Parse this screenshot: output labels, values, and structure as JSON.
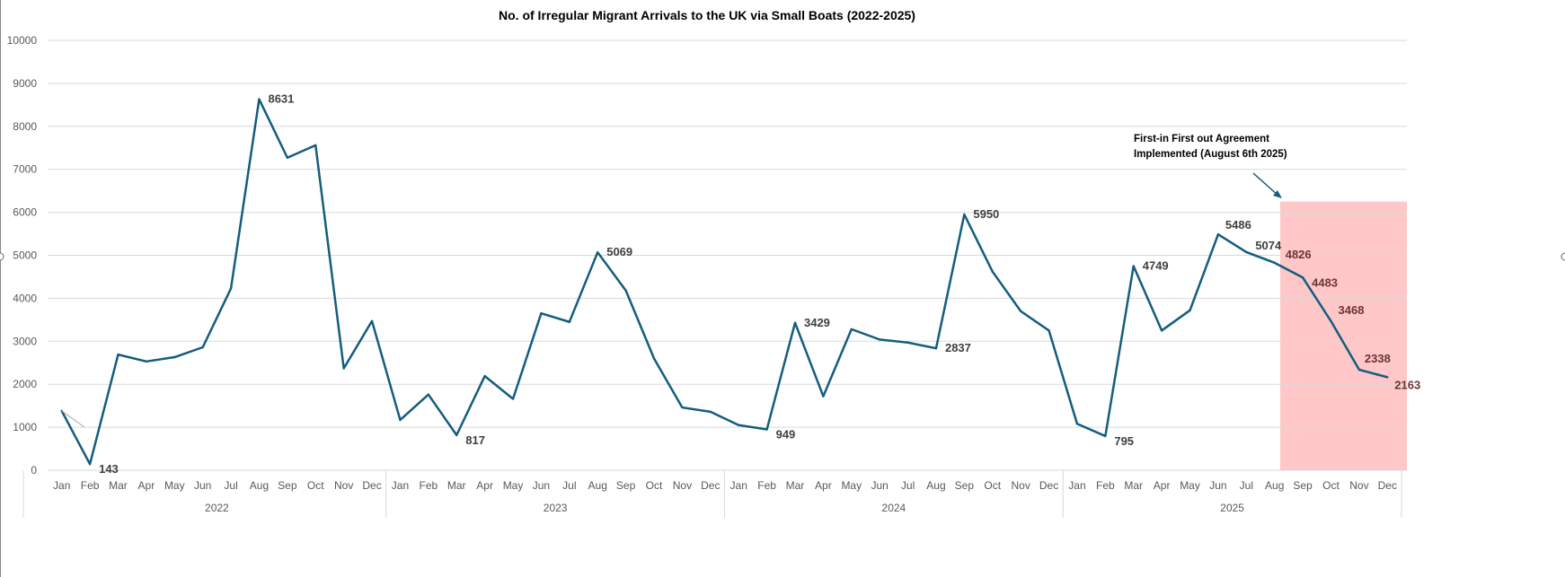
{
  "chart_data": {
    "type": "line",
    "title": "No. of Irregular Migrant Arrivals to the UK via Small Boats (2022-2025)",
    "xlabel": "",
    "ylabel": "",
    "ylim": [
      0,
      10000
    ],
    "yticks": [
      0,
      1000,
      2000,
      3000,
      4000,
      5000,
      6000,
      7000,
      8000,
      9000,
      10000
    ],
    "grid": true,
    "legend": "none",
    "months": [
      "Jan",
      "Feb",
      "Mar",
      "Apr",
      "May",
      "Jun",
      "Jul",
      "Aug",
      "Sep",
      "Oct",
      "Nov",
      "Dec"
    ],
    "years": [
      "2022",
      "2023",
      "2024",
      "2025"
    ],
    "series": [
      {
        "color": "#145d7e",
        "values": [
          1380,
          143,
          2690,
          2530,
          2630,
          2860,
          4230,
          8631,
          7270,
          7560,
          2370,
          3470,
          1170,
          1760,
          817,
          2190,
          1660,
          3650,
          3450,
          5069,
          4180,
          2600,
          1460,
          1360,
          1050,
          949,
          3429,
          1720,
          3280,
          3040,
          2970,
          2837,
          5950,
          4620,
          3700,
          3250,
          1080,
          795,
          4749,
          3250,
          3720,
          5486,
          5074,
          4826,
          4483,
          3468,
          2338,
          2163
        ]
      }
    ],
    "data_labels": [
      {
        "index": 1,
        "text": "143"
      },
      {
        "index": 7,
        "text": "8631"
      },
      {
        "index": 14,
        "text": "817"
      },
      {
        "index": 19,
        "text": "5069"
      },
      {
        "index": 25,
        "text": "949"
      },
      {
        "index": 26,
        "text": "3429"
      },
      {
        "index": 31,
        "text": "2837"
      },
      {
        "index": 32,
        "text": "5950"
      },
      {
        "index": 37,
        "text": "795"
      },
      {
        "index": 38,
        "text": "4749"
      },
      {
        "index": 41,
        "text": "5486"
      },
      {
        "index": 42,
        "text": "5074"
      },
      {
        "index": 43,
        "text": "4826"
      },
      {
        "index": 44,
        "text": "4483"
      },
      {
        "index": 45,
        "text": "3468"
      },
      {
        "index": 46,
        "text": "2338"
      },
      {
        "index": 47,
        "text": "2163"
      }
    ],
    "annotation": {
      "lines": [
        "First-in First out Agreement",
        "Implemented (August 6th 2025)"
      ],
      "color": "#145d7e"
    },
    "highlight_region": {
      "from": "Aug 2025 (6th)",
      "to": "Dec 2025",
      "y_top": 6250,
      "color": "#ffc7c7"
    }
  }
}
